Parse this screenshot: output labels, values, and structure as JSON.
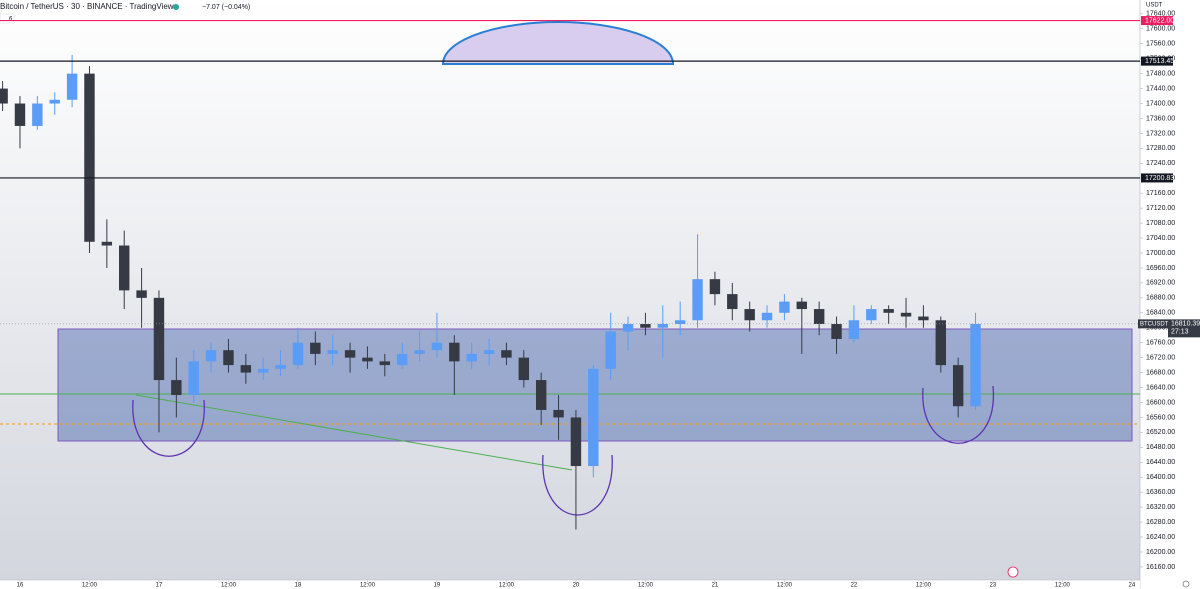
{
  "chart_data": {
    "type": "candlestick",
    "title": "Bitcoin / TetherUS · 30 · BINANCE · TradingView",
    "change": "−7.07 (−0.04%)",
    "indicator_count": "6",
    "currency": "USDT",
    "symbol_tag": "BTCUSDT",
    "countdown": "27:13",
    "up_color": "#5b9cf6",
    "down_color": "#363a45",
    "x": [
      -3,
      0,
      3,
      6,
      9,
      12,
      15,
      18,
      21,
      24,
      27,
      30,
      33,
      36,
      39,
      42,
      45,
      48,
      51,
      54,
      57,
      60,
      63,
      66,
      69,
      72,
      75,
      78,
      81,
      84,
      87,
      90,
      93,
      96,
      99,
      102,
      105,
      108,
      111,
      114,
      117,
      120,
      123,
      126,
      129,
      132,
      135,
      138,
      141,
      144,
      147,
      150,
      153,
      156,
      159,
      162,
      165
    ],
    "open": [
      17440,
      17400,
      17340,
      17400,
      17410,
      17480,
      17030,
      17020,
      16900,
      16880,
      16660,
      16620,
      16710,
      16740,
      16700,
      16680,
      16690,
      16700,
      16760,
      16730,
      16740,
      16720,
      16710,
      16700,
      16730,
      16740,
      16760,
      16710,
      16730,
      16740,
      16720,
      16660,
      16580,
      16560,
      16430,
      16690,
      16790,
      16810,
      16800,
      16810,
      16820,
      16930,
      16890,
      16850,
      16820,
      16840,
      16870,
      16850,
      16810,
      16770,
      16820,
      16850,
      16840,
      16830,
      16820,
      16700,
      16590
    ],
    "high": [
      17460,
      17420,
      17420,
      17430,
      17530,
      17500,
      17090,
      17060,
      16960,
      16900,
      16720,
      16740,
      16760,
      16770,
      16730,
      16720,
      16740,
      16800,
      16790,
      16780,
      16760,
      16750,
      16730,
      16760,
      16790,
      16840,
      16780,
      16760,
      16770,
      16760,
      16740,
      16680,
      16620,
      16580,
      16700,
      16840,
      16830,
      16840,
      16860,
      16870,
      17050,
      16950,
      16920,
      16870,
      16860,
      16890,
      16880,
      16870,
      16830,
      16860,
      16860,
      16860,
      16880,
      16860,
      16830,
      16720,
      16840
    ],
    "low": [
      17380,
      17280,
      17330,
      17370,
      17390,
      17000,
      16960,
      16850,
      16800,
      16520,
      16560,
      16600,
      16680,
      16680,
      16650,
      16660,
      16670,
      16690,
      16700,
      16700,
      16680,
      16690,
      16670,
      16690,
      16710,
      16720,
      16620,
      16690,
      16700,
      16700,
      16640,
      16540,
      16500,
      16260,
      16400,
      16660,
      16740,
      16780,
      16720,
      16780,
      16800,
      16860,
      16820,
      16790,
      16800,
      16820,
      16730,
      16780,
      16730,
      16760,
      16810,
      16810,
      16800,
      16800,
      16680,
      16560,
      16580
    ],
    "close": [
      17400,
      17340,
      17400,
      17410,
      17480,
      17030,
      17020,
      16900,
      16880,
      16660,
      16620,
      16710,
      16740,
      16700,
      16680,
      16690,
      16700,
      16760,
      16730,
      16740,
      16720,
      16710,
      16700,
      16730,
      16740,
      16760,
      16710,
      16730,
      16740,
      16720,
      16660,
      16580,
      16560,
      16430,
      16690,
      16790,
      16810,
      16800,
      16810,
      16820,
      16930,
      16890,
      16850,
      16820,
      16840,
      16870,
      16850,
      16810,
      16770,
      16820,
      16850,
      16840,
      16830,
      16820,
      16700,
      16590,
      16810.39
    ],
    "xlim": [
      -3.45,
      193.4
    ],
    "xticks": [
      {
        "value": 0,
        "label": "16"
      },
      {
        "value": 12,
        "label": "12:00"
      },
      {
        "value": 24,
        "label": "17"
      },
      {
        "value": 36,
        "label": "12:00"
      },
      {
        "value": 48,
        "label": "18"
      },
      {
        "value": 60,
        "label": "12:00"
      },
      {
        "value": 72,
        "label": "19"
      },
      {
        "value": 84,
        "label": "12:00"
      },
      {
        "value": 96,
        "label": "20"
      },
      {
        "value": 108,
        "label": "12:00"
      },
      {
        "value": 120,
        "label": "21"
      },
      {
        "value": 132,
        "label": "12:00"
      },
      {
        "value": 144,
        "label": "22"
      },
      {
        "value": 156,
        "label": "12:00"
      },
      {
        "value": 168,
        "label": "23"
      },
      {
        "value": 180,
        "label": "12:00"
      },
      {
        "value": 192,
        "label": "24"
      }
    ],
    "ylim": [
      16125,
      17677
    ],
    "yticks": [
      {
        "value": 16160,
        "label": "16160.00"
      },
      {
        "value": 16200,
        "label": "16200.00"
      },
      {
        "value": 16240,
        "label": "16240.00"
      },
      {
        "value": 16280,
        "label": "16280.00"
      },
      {
        "value": 16320,
        "label": "16320.00"
      },
      {
        "value": 16360,
        "label": "16360.00"
      },
      {
        "value": 16400,
        "label": "16400.00"
      },
      {
        "value": 16440,
        "label": "16440.00"
      },
      {
        "value": 16480,
        "label": "16480.00"
      },
      {
        "value": 16520,
        "label": "16520.00"
      },
      {
        "value": 16560,
        "label": "16560.00"
      },
      {
        "value": 16600,
        "label": "16600.00"
      },
      {
        "value": 16640,
        "label": "16640.00"
      },
      {
        "value": 16680,
        "label": "16680.00"
      },
      {
        "value": 16720,
        "label": "16720.00"
      },
      {
        "value": 16760,
        "label": "16760.00"
      },
      {
        "value": 16800,
        "label": "16800.00"
      },
      {
        "value": 16840,
        "label": "16840.00"
      },
      {
        "value": 16880,
        "label": "16880.00"
      },
      {
        "value": 16920,
        "label": "16920.00"
      },
      {
        "value": 16960,
        "label": "16960.00"
      },
      {
        "value": 17000,
        "label": "17000.00"
      },
      {
        "value": 17040,
        "label": "17040.00"
      },
      {
        "value": 17080,
        "label": "17080.00"
      },
      {
        "value": 17120,
        "label": "17120.00"
      },
      {
        "value": 17160,
        "label": "17160.00"
      },
      {
        "value": 17200,
        "label": "17200.00"
      },
      {
        "value": 17240,
        "label": "17240.00"
      },
      {
        "value": 17280,
        "label": "17280.00"
      },
      {
        "value": 17320,
        "label": "17320.00"
      },
      {
        "value": 17360,
        "label": "17360.00"
      },
      {
        "value": 17400,
        "label": "17400.00"
      },
      {
        "value": 17440,
        "label": "17440.00"
      },
      {
        "value": 17480,
        "label": "17480.00"
      },
      {
        "value": 17520,
        "label": "17520.00"
      },
      {
        "value": 17560,
        "label": "17560.00"
      },
      {
        "value": 17600,
        "label": "17600.00"
      },
      {
        "value": 17640,
        "label": "17640.00"
      }
    ],
    "hlines": [
      {
        "value": 17622,
        "label": "17622.00",
        "color": "#e91e63"
      },
      {
        "value": 17513.45,
        "label": "17513.45",
        "color": "#131722"
      },
      {
        "value": 17200.83,
        "label": "17200.83",
        "color": "#131722"
      }
    ]
  }
}
